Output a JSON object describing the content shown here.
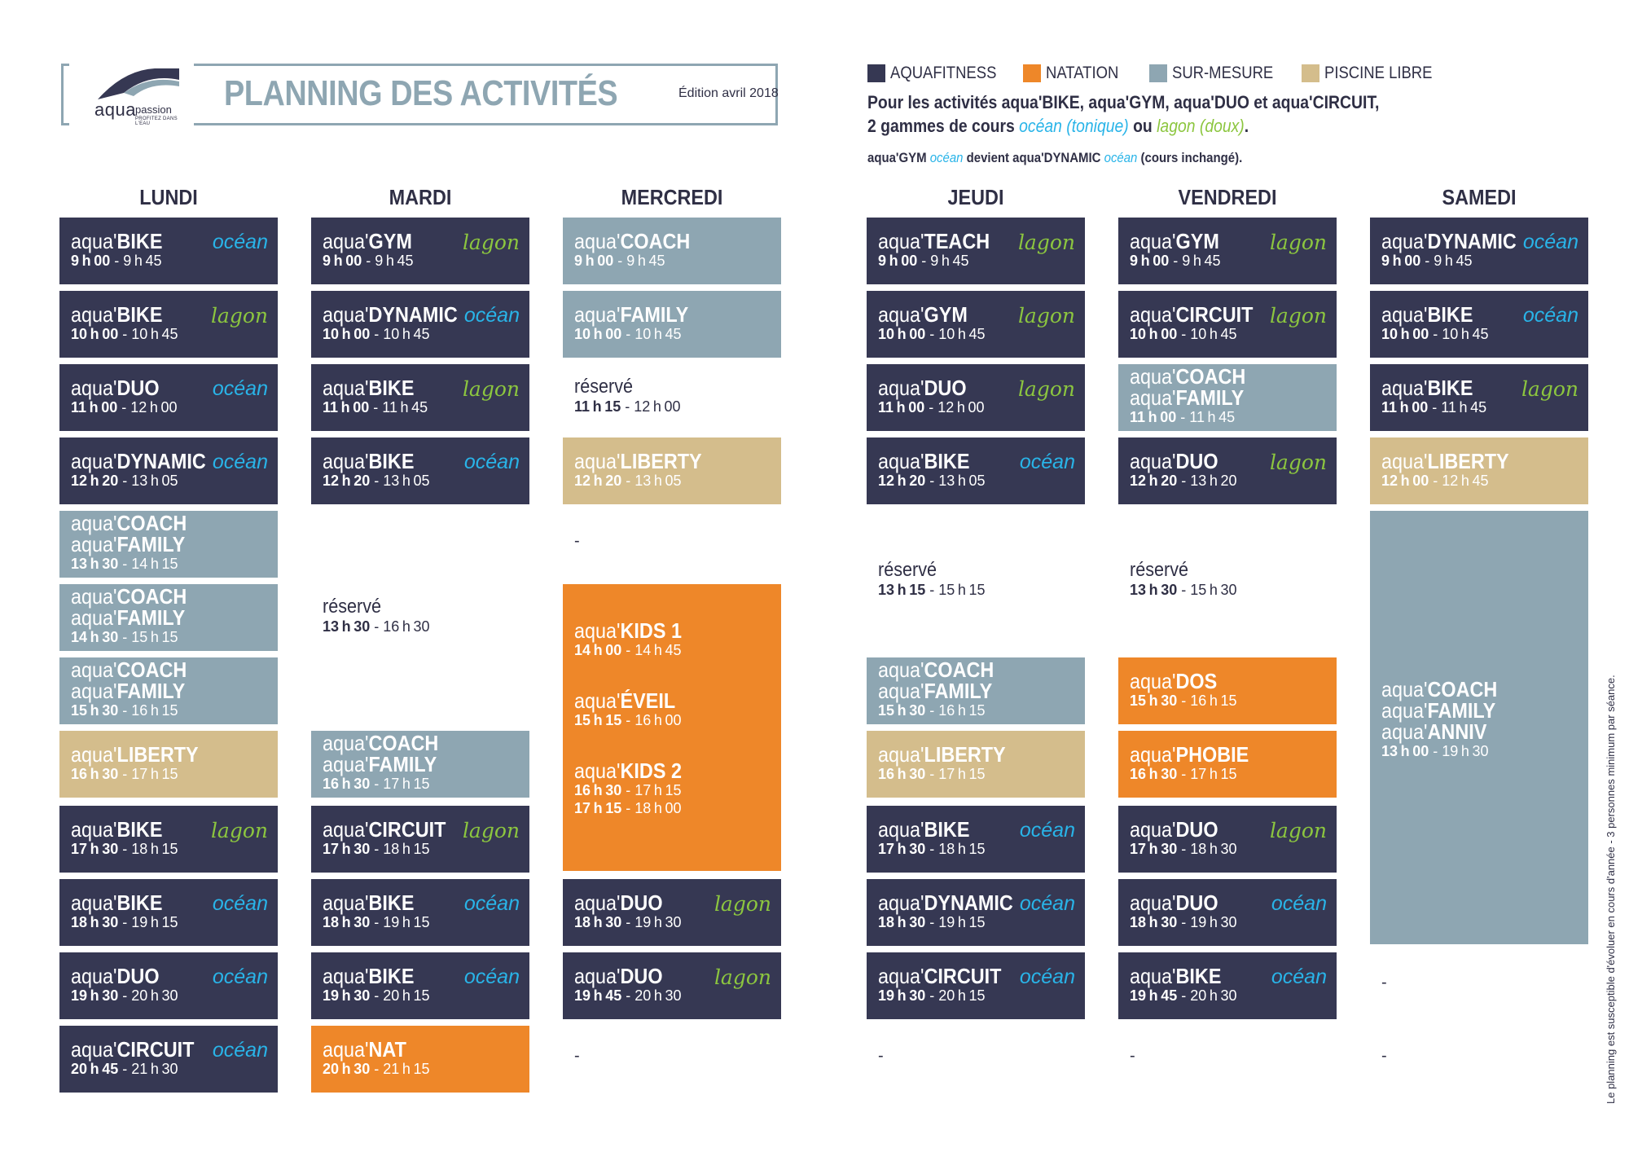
{
  "header": {
    "logo_word": "aqua",
    "logo_word2": "passion",
    "logo_tag": "PROFITEZ DANS L'EAU",
    "title": "PLANNING DES ACTIVITÉS",
    "edition": "Édition avril 2018"
  },
  "legend": [
    {
      "label": "AQUAFITNESS",
      "color": "#363853"
    },
    {
      "label": "NATATION",
      "color": "#ee8729"
    },
    {
      "label": "SUR-MESURE",
      "color": "#8ea6b2"
    },
    {
      "label": "PISCINE LIBRE",
      "color": "#d4bd8c"
    }
  ],
  "info": {
    "line1": "Pour les activités aqua'BIKE, aqua'GYM, aqua'DUO et aqua'CIRCUIT,",
    "line2_a": "2 gammes de cours ",
    "line2_ocean": "océan (tonique)",
    "line2_b": " ou ",
    "line2_lagon": "lagon (doux)",
    "line2_c": ".",
    "line3_a": "aqua'GYM ",
    "line3_ocean": "océan",
    "line3_b": " devient aqua'DYNAMIC ",
    "line3_ocean2": "océan",
    "line3_c": " (cours inchangé)."
  },
  "side_note": "Le planning est susceptible d'évoluer en cours d'année  -  3 personnes minimum par séance.",
  "prefix": "aqua'",
  "dash": "-",
  "days": [
    {
      "name": "LUNDI",
      "items": [
        {
          "cat": "aquafit",
          "slot": 0,
          "span": 1,
          "lines": [
            "BIKE"
          ],
          "gamme": "océan",
          "times": [
            [
              "9h00",
              "9h45"
            ]
          ]
        },
        {
          "cat": "aquafit",
          "slot": 1,
          "span": 1,
          "lines": [
            "BIKE"
          ],
          "gamme": "lagon",
          "times": [
            [
              "10h00",
              "10h45"
            ]
          ]
        },
        {
          "cat": "aquafit",
          "slot": 2,
          "span": 1,
          "lines": [
            "DUO"
          ],
          "gamme": "océan",
          "times": [
            [
              "11h00",
              "12h00"
            ]
          ]
        },
        {
          "cat": "aquafit",
          "slot": 3,
          "span": 1,
          "lines": [
            "DYNAMIC"
          ],
          "gamme": "océan",
          "times": [
            [
              "12h20",
              "13h05"
            ]
          ]
        },
        {
          "cat": "surmesure",
          "slot": 4,
          "span": 1,
          "lines": [
            "COACH",
            "FAMILY"
          ],
          "times": [
            [
              "13h30",
              "14h15"
            ]
          ]
        },
        {
          "cat": "surmesure",
          "slot": 5,
          "span": 1,
          "lines": [
            "COACH",
            "FAMILY"
          ],
          "times": [
            [
              "14h30",
              "15h15"
            ]
          ]
        },
        {
          "cat": "surmesure",
          "slot": 6,
          "span": 1,
          "lines": [
            "COACH",
            "FAMILY"
          ],
          "times": [
            [
              "15h30",
              "16h15"
            ]
          ]
        },
        {
          "cat": "piscine",
          "slot": 7,
          "span": 1,
          "lines": [
            "LIBERTY"
          ],
          "times": [
            [
              "16h30",
              "17h15"
            ]
          ]
        },
        {
          "cat": "aquafit",
          "slot": 8,
          "span": 1,
          "lines": [
            "BIKE"
          ],
          "gamme": "lagon",
          "times": [
            [
              "17h30",
              "18h15"
            ]
          ]
        },
        {
          "cat": "aquafit",
          "slot": 9,
          "span": 1,
          "lines": [
            "BIKE"
          ],
          "gamme": "océan",
          "times": [
            [
              "18h30",
              "19h15"
            ]
          ]
        },
        {
          "cat": "aquafit",
          "slot": 10,
          "span": 1,
          "lines": [
            "DUO"
          ],
          "gamme": "océan",
          "times": [
            [
              "19h30",
              "20h30"
            ]
          ]
        },
        {
          "cat": "aquafit",
          "slot": 11,
          "span": 1,
          "lines": [
            "CIRCUIT"
          ],
          "gamme": "océan",
          "times": [
            [
              "20h45",
              "21h30"
            ]
          ]
        }
      ]
    },
    {
      "name": "MARDI",
      "items": [
        {
          "cat": "aquafit",
          "slot": 0,
          "span": 1,
          "lines": [
            "GYM"
          ],
          "gamme": "lagon",
          "times": [
            [
              "9h00",
              "9h45"
            ]
          ]
        },
        {
          "cat": "aquafit",
          "slot": 1,
          "span": 1,
          "lines": [
            "DYNAMIC"
          ],
          "gamme": "océan",
          "times": [
            [
              "10h00",
              "10h45"
            ]
          ]
        },
        {
          "cat": "aquafit",
          "slot": 2,
          "span": 1,
          "lines": [
            "BIKE"
          ],
          "gamme": "lagon",
          "times": [
            [
              "11h00",
              "11h45"
            ]
          ]
        },
        {
          "cat": "aquafit",
          "slot": 3,
          "span": 1,
          "lines": [
            "BIKE"
          ],
          "gamme": "océan",
          "times": [
            [
              "12h20",
              "13h05"
            ]
          ]
        },
        {
          "cat": "reserve",
          "slot": 4,
          "span": 3,
          "label": "réservé",
          "times": [
            [
              "13h30",
              "16h30"
            ]
          ]
        },
        {
          "cat": "surmesure",
          "slot": 7,
          "span": 1,
          "lines": [
            "COACH",
            "FAMILY"
          ],
          "times": [
            [
              "16h30",
              "17h15"
            ]
          ]
        },
        {
          "cat": "aquafit",
          "slot": 8,
          "span": 1,
          "lines": [
            "CIRCUIT"
          ],
          "gamme": "lagon",
          "times": [
            [
              "17h30",
              "18h15"
            ]
          ]
        },
        {
          "cat": "aquafit",
          "slot": 9,
          "span": 1,
          "lines": [
            "BIKE"
          ],
          "gamme": "océan",
          "times": [
            [
              "18h30",
              "19h15"
            ]
          ]
        },
        {
          "cat": "aquafit",
          "slot": 10,
          "span": 1,
          "lines": [
            "BIKE"
          ],
          "gamme": "océan",
          "times": [
            [
              "19h30",
              "20h15"
            ]
          ]
        },
        {
          "cat": "natation",
          "slot": 11,
          "span": 1,
          "lines": [
            "NAT"
          ],
          "times": [
            [
              "20h30",
              "21h15"
            ]
          ]
        }
      ]
    },
    {
      "name": "MERCREDI",
      "items": [
        {
          "cat": "surmesure",
          "slot": 0,
          "span": 1,
          "lines": [
            "COACH"
          ],
          "times": [
            [
              "9h00",
              "9h45"
            ]
          ]
        },
        {
          "cat": "surmesure",
          "slot": 1,
          "span": 1,
          "lines": [
            "FAMILY"
          ],
          "times": [
            [
              "10h00",
              "10h45"
            ]
          ]
        },
        {
          "cat": "reserve",
          "slot": 2,
          "span": 1,
          "label": "réservé",
          "times": [
            [
              "11h15",
              "12h00"
            ]
          ]
        },
        {
          "cat": "piscine",
          "slot": 3,
          "span": 1,
          "lines": [
            "LIBERTY"
          ],
          "times": [
            [
              "12h20",
              "13h05"
            ]
          ]
        },
        {
          "cat": "empty",
          "slot": 4,
          "span": 1
        },
        {
          "cat": "natation-multi",
          "slot": 5,
          "span": 4,
          "groups": [
            {
              "name": "KIDS 1",
              "times": [
                [
                  "14h00",
                  "14h45"
                ]
              ]
            },
            {
              "name": "ÉVEIL",
              "times": [
                [
                  "15h15",
                  "16h00"
                ]
              ]
            },
            {
              "name": "KIDS 2",
              "times": [
                [
                  "16h30",
                  "17h15"
                ],
                [
                  "17h15",
                  "18h00"
                ]
              ]
            }
          ]
        },
        {
          "cat": "aquafit",
          "slot": 9,
          "span": 1,
          "lines": [
            "DUO"
          ],
          "gamme": "lagon",
          "times": [
            [
              "18h30",
              "19h30"
            ]
          ]
        },
        {
          "cat": "aquafit",
          "slot": 10,
          "span": 1,
          "lines": [
            "DUO"
          ],
          "gamme": "lagon",
          "times": [
            [
              "19h45",
              "20h30"
            ]
          ]
        },
        {
          "cat": "empty",
          "slot": 11,
          "span": 1
        }
      ]
    },
    {
      "name": "JEUDI",
      "items": [
        {
          "cat": "aquafit",
          "slot": 0,
          "span": 1,
          "lines": [
            "TEACH"
          ],
          "gamme": "lagon",
          "times": [
            [
              "9h00",
              "9h45"
            ]
          ]
        },
        {
          "cat": "aquafit",
          "slot": 1,
          "span": 1,
          "lines": [
            "GYM"
          ],
          "gamme": "lagon",
          "times": [
            [
              "10h00",
              "10h45"
            ]
          ]
        },
        {
          "cat": "aquafit",
          "slot": 2,
          "span": 1,
          "lines": [
            "DUO"
          ],
          "gamme": "lagon",
          "times": [
            [
              "11h00",
              "12h00"
            ]
          ]
        },
        {
          "cat": "aquafit",
          "slot": 3,
          "span": 1,
          "lines": [
            "BIKE"
          ],
          "gamme": "océan",
          "times": [
            [
              "12h20",
              "13h05"
            ]
          ]
        },
        {
          "cat": "reserve",
          "slot": 4,
          "span": 2,
          "label": "réservé",
          "times": [
            [
              "13h15",
              "15h15"
            ]
          ]
        },
        {
          "cat": "surmesure",
          "slot": 6,
          "span": 1,
          "lines": [
            "COACH",
            "FAMILY"
          ],
          "times": [
            [
              "15h30",
              "16h15"
            ]
          ]
        },
        {
          "cat": "piscine",
          "slot": 7,
          "span": 1,
          "lines": [
            "LIBERTY"
          ],
          "times": [
            [
              "16h30",
              "17h15"
            ]
          ]
        },
        {
          "cat": "aquafit",
          "slot": 8,
          "span": 1,
          "lines": [
            "BIKE"
          ],
          "gamme": "océan",
          "times": [
            [
              "17h30",
              "18h15"
            ]
          ]
        },
        {
          "cat": "aquafit",
          "slot": 9,
          "span": 1,
          "lines": [
            "DYNAMIC"
          ],
          "gamme": "océan",
          "times": [
            [
              "18h30",
              "19h15"
            ]
          ]
        },
        {
          "cat": "aquafit",
          "slot": 10,
          "span": 1,
          "lines": [
            "CIRCUIT"
          ],
          "gamme": "océan",
          "times": [
            [
              "19h30",
              "20h15"
            ]
          ]
        },
        {
          "cat": "empty",
          "slot": 11,
          "span": 1
        }
      ]
    },
    {
      "name": "VENDREDI",
      "items": [
        {
          "cat": "aquafit",
          "slot": 0,
          "span": 1,
          "lines": [
            "GYM"
          ],
          "gamme": "lagon",
          "times": [
            [
              "9h00",
              "9h45"
            ]
          ]
        },
        {
          "cat": "aquafit",
          "slot": 1,
          "span": 1,
          "lines": [
            "CIRCUIT"
          ],
          "gamme": "lagon",
          "times": [
            [
              "10h00",
              "10h45"
            ]
          ]
        },
        {
          "cat": "surmesure",
          "slot": 2,
          "span": 1,
          "lines": [
            "COACH",
            "FAMILY"
          ],
          "times": [
            [
              "11h00",
              "11h45"
            ]
          ]
        },
        {
          "cat": "aquafit",
          "slot": 3,
          "span": 1,
          "lines": [
            "DUO"
          ],
          "gamme": "lagon",
          "times": [
            [
              "12h20",
              "13h20"
            ]
          ]
        },
        {
          "cat": "reserve",
          "slot": 4,
          "span": 2,
          "label": "réservé",
          "times": [
            [
              "13h30",
              "15h30"
            ]
          ]
        },
        {
          "cat": "natation",
          "slot": 6,
          "span": 1,
          "lines": [
            "DOS"
          ],
          "times": [
            [
              "15h30",
              "16h15"
            ]
          ]
        },
        {
          "cat": "natation",
          "slot": 7,
          "span": 1,
          "lines": [
            "PHOBIE"
          ],
          "times": [
            [
              "16h30",
              "17h15"
            ]
          ]
        },
        {
          "cat": "aquafit",
          "slot": 8,
          "span": 1,
          "lines": [
            "DUO"
          ],
          "gamme": "lagon",
          "times": [
            [
              "17h30",
              "18h30"
            ]
          ]
        },
        {
          "cat": "aquafit",
          "slot": 9,
          "span": 1,
          "lines": [
            "DUO"
          ],
          "gamme": "océan",
          "times": [
            [
              "18h30",
              "19h30"
            ]
          ]
        },
        {
          "cat": "aquafit",
          "slot": 10,
          "span": 1,
          "lines": [
            "BIKE"
          ],
          "gamme": "océan",
          "times": [
            [
              "19h45",
              "20h30"
            ]
          ]
        },
        {
          "cat": "empty",
          "slot": 11,
          "span": 1
        }
      ]
    },
    {
      "name": "SAMEDI",
      "items": [
        {
          "cat": "aquafit",
          "slot": 0,
          "span": 1,
          "lines": [
            "DYNAMIC"
          ],
          "gamme": "océan",
          "times": [
            [
              "9h00",
              "9h45"
            ]
          ]
        },
        {
          "cat": "aquafit",
          "slot": 1,
          "span": 1,
          "lines": [
            "BIKE"
          ],
          "gamme": "océan",
          "times": [
            [
              "10h00",
              "10h45"
            ]
          ]
        },
        {
          "cat": "aquafit",
          "slot": 2,
          "span": 1,
          "lines": [
            "BIKE"
          ],
          "gamme": "lagon",
          "times": [
            [
              "11h00",
              "11h45"
            ]
          ]
        },
        {
          "cat": "piscine",
          "slot": 3,
          "span": 1,
          "lines": [
            "LIBERTY"
          ],
          "times": [
            [
              "12h00",
              "12h45"
            ]
          ]
        },
        {
          "cat": "surmesure",
          "slot": 4,
          "span": 6,
          "lines": [
            "COACH",
            "FAMILY",
            "ANNIV"
          ],
          "times": [
            [
              "13h00",
              "19h30"
            ]
          ]
        },
        {
          "cat": "empty",
          "slot": 10,
          "span": 1
        },
        {
          "cat": "empty",
          "slot": 11,
          "span": 1
        }
      ]
    }
  ]
}
